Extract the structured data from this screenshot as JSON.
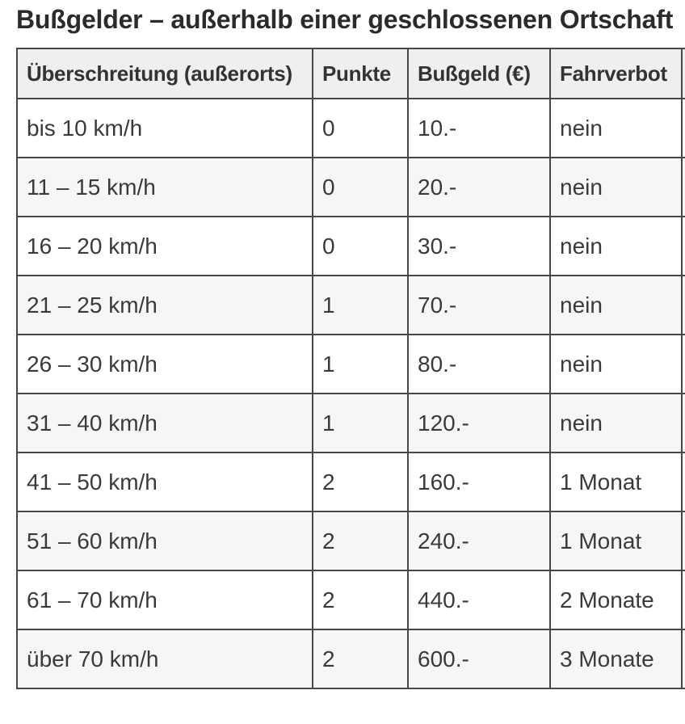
{
  "page": {
    "title": "Bußgelder – außerhalb einer geschlossenen Ortschaft"
  },
  "table": {
    "columns": [
      "Überschreitung (außerorts)",
      "Punkte",
      "Bußgeld (€)",
      "Fahrverbot"
    ],
    "rows": [
      [
        "bis 10 km/h",
        "0",
        "10.-",
        "nein"
      ],
      [
        "11 – 15 km/h",
        "0",
        "20.-",
        "nein"
      ],
      [
        "16 – 20 km/h",
        "0",
        "30.-",
        "nein"
      ],
      [
        "21 – 25 km/h",
        "1",
        "70.-",
        "nein"
      ],
      [
        "26 – 30 km/h",
        "1",
        "80.-",
        "nein"
      ],
      [
        "31 – 40 km/h",
        "1",
        "120.-",
        "nein"
      ],
      [
        "41 – 50 km/h",
        "2",
        "160.-",
        "1 Monat"
      ],
      [
        "51 – 60 km/h",
        "2",
        "240.-",
        "1 Monat"
      ],
      [
        "61 – 70 km/h",
        "2",
        "440.-",
        "2 Monate"
      ],
      [
        "über 70 km/h",
        "2",
        "600.-",
        "3 Monate"
      ]
    ]
  },
  "colors": {
    "title_text": "#2b2b2b",
    "cell_text": "#3a3a3a",
    "table_border": "#474747",
    "header_background": "#f0efef",
    "stripe_background": "#f6f6f6",
    "page_background": "#ffffff"
  }
}
